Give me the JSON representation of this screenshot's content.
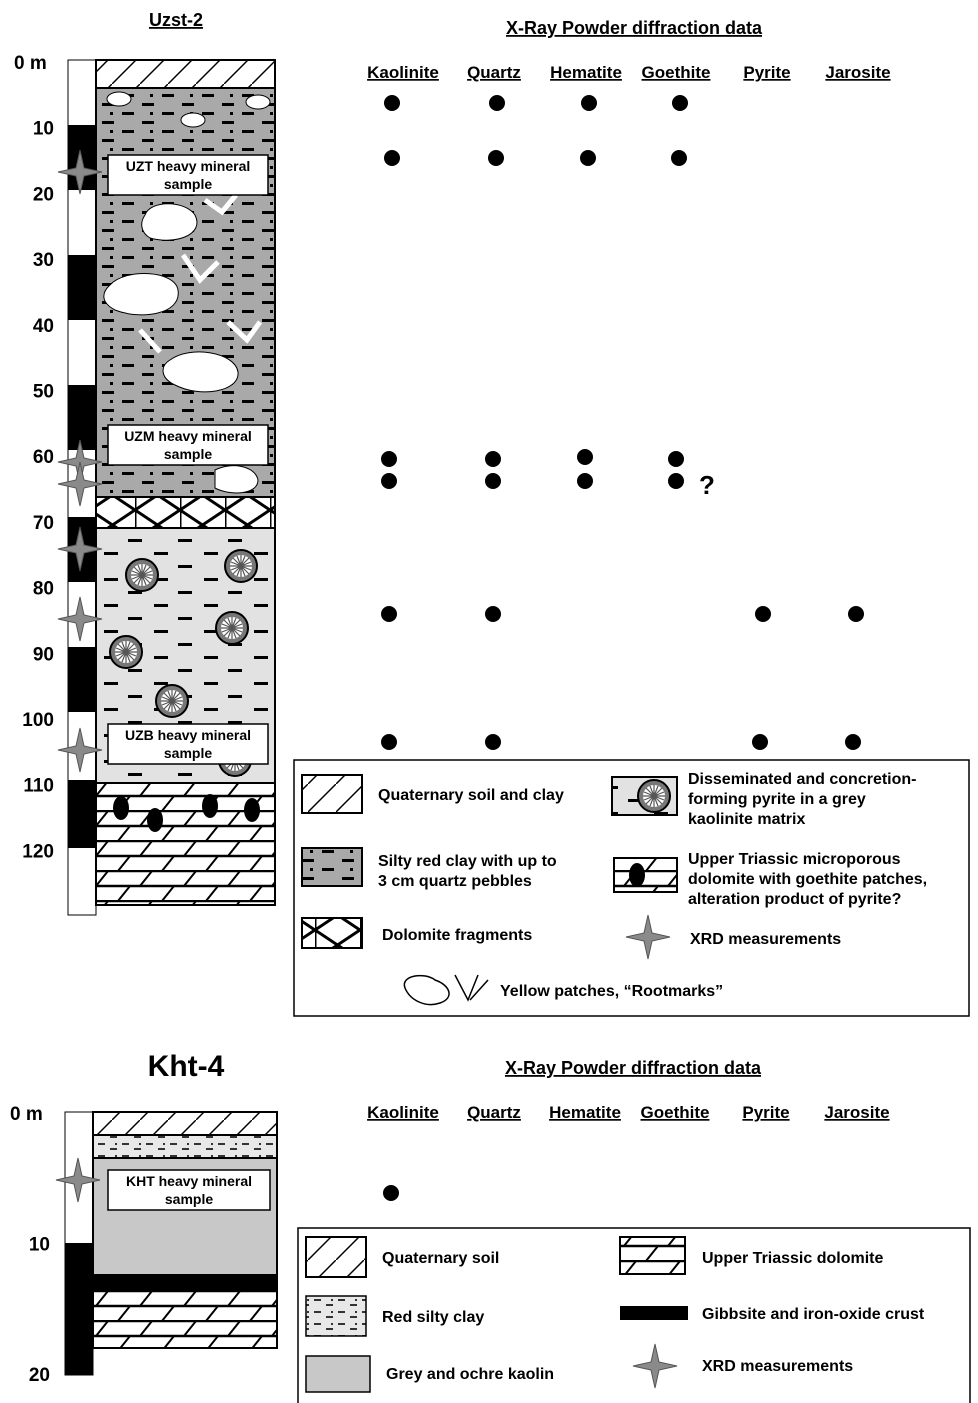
{
  "uzst2": {
    "title": "Uzst-2",
    "depth_labels": [
      "0 m",
      "10",
      "20",
      "30",
      "40",
      "50",
      "60",
      "70",
      "80",
      "90",
      "100",
      "110",
      "120"
    ],
    "samples": [
      [
        "UZT heavy mineral",
        "sample"
      ],
      [
        "UZM heavy mineral",
        "sample"
      ],
      [
        "UZB heavy mineral",
        "sample"
      ]
    ],
    "xrd_title": "X-Ray Powder diffraction data",
    "minerals": [
      "Kaolinite",
      "Quartz",
      "Hematite",
      "Goethite",
      "Pyrite",
      "Jarosite"
    ],
    "question": "?",
    "legend": [
      [
        "Quaternary soil and clay"
      ],
      [
        "Silty red clay with up to",
        "3 cm quartz pebbles"
      ],
      [
        "Dolomite fragments"
      ],
      [
        "Disseminated and concretion-",
        "forming pyrite in a grey",
        "kaolinite matrix"
      ],
      [
        "Upper Triassic microporous",
        "dolomite with goethite patches,",
        "alteration product of pyrite?"
      ],
      [
        "XRD measurements"
      ],
      [
        "Yellow patches, “Rootmarks”"
      ]
    ]
  },
  "kht4": {
    "title": "Kht-4",
    "depth_labels": [
      "0 m",
      "10",
      "20"
    ],
    "samples": [
      [
        "KHT heavy mineral",
        "sample"
      ]
    ],
    "xrd_title": "X-Ray Powder diffraction data",
    "minerals": [
      "Kaolinite",
      "Quartz",
      "Hematite",
      "Goethite",
      "Pyrite",
      "Jarosite"
    ],
    "legend": [
      [
        "Quaternary soil"
      ],
      [
        "Red silty clay"
      ],
      [
        "Grey and ochre kaolin"
      ],
      [
        "Upper Triassic dolomite"
      ],
      [
        "Gibbsite and iron-oxide crust"
      ],
      [
        "XRD measurements"
      ]
    ]
  }
}
